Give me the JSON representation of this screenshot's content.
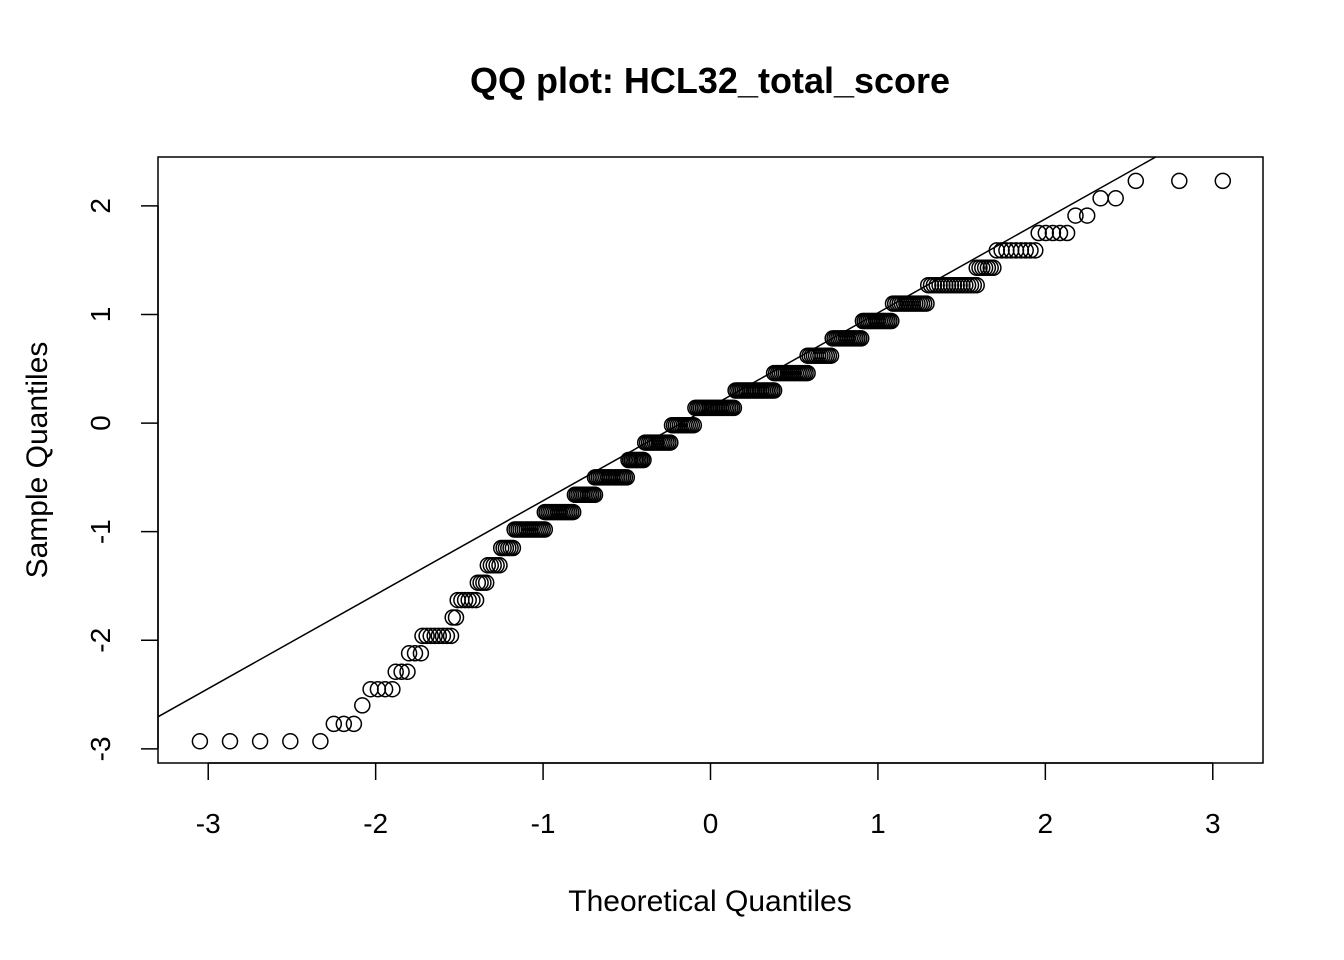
{
  "chart_data": {
    "type": "scatter",
    "title": "QQ plot: HCL32_total_score",
    "xlabel": "Theoretical Quantiles",
    "ylabel": "Sample Quantiles",
    "xlim": [
      -3.3,
      3.3
    ],
    "ylim": [
      -3.13,
      2.45
    ],
    "x_ticks": [
      -3,
      -2,
      -1,
      0,
      1,
      2,
      3
    ],
    "y_ticks": [
      -3,
      -2,
      -1,
      0,
      1,
      2
    ],
    "grid": false,
    "marker": "open-circle",
    "reference_line": {
      "intercept": 0.15,
      "slope": 0.865
    },
    "groups": [
      {
        "y": -2.93,
        "x_min": -3.05,
        "x_max": -2.33,
        "n": 5
      },
      {
        "y": -2.77,
        "x_min": -2.25,
        "x_max": -2.13,
        "n": 3
      },
      {
        "y": -2.6,
        "x_min": -2.08,
        "x_max": -2.08,
        "n": 1
      },
      {
        "y": -2.45,
        "x_min": -2.03,
        "x_max": -1.9,
        "n": 4
      },
      {
        "y": -2.29,
        "x_min": -1.88,
        "x_max": -1.81,
        "n": 3
      },
      {
        "y": -2.12,
        "x_min": -1.8,
        "x_max": -1.73,
        "n": 3
      },
      {
        "y": -1.96,
        "x_min": -1.72,
        "x_max": -1.55,
        "n": 8
      },
      {
        "y": -1.79,
        "x_min": -1.54,
        "x_max": -1.52,
        "n": 2
      },
      {
        "y": -1.63,
        "x_min": -1.51,
        "x_max": -1.4,
        "n": 6
      },
      {
        "y": -1.47,
        "x_min": -1.39,
        "x_max": -1.34,
        "n": 4
      },
      {
        "y": -1.31,
        "x_min": -1.33,
        "x_max": -1.26,
        "n": 5
      },
      {
        "y": -1.15,
        "x_min": -1.25,
        "x_max": -1.18,
        "n": 6
      },
      {
        "y": -0.98,
        "x_min": -1.17,
        "x_max": -0.99,
        "n": 16
      },
      {
        "y": -0.82,
        "x_min": -0.99,
        "x_max": -0.82,
        "n": 16
      },
      {
        "y": -0.66,
        "x_min": -0.81,
        "x_max": -0.69,
        "n": 12
      },
      {
        "y": -0.5,
        "x_min": -0.69,
        "x_max": -0.5,
        "n": 18
      },
      {
        "y": -0.34,
        "x_min": -0.49,
        "x_max": -0.4,
        "n": 10
      },
      {
        "y": -0.18,
        "x_min": -0.39,
        "x_max": -0.24,
        "n": 14
      },
      {
        "y": -0.02,
        "x_min": -0.23,
        "x_max": -0.1,
        "n": 12
      },
      {
        "y": 0.14,
        "x_min": -0.09,
        "x_max": 0.14,
        "n": 22
      },
      {
        "y": 0.3,
        "x_min": 0.15,
        "x_max": 0.38,
        "n": 22
      },
      {
        "y": 0.46,
        "x_min": 0.38,
        "x_max": 0.58,
        "n": 18
      },
      {
        "y": 0.62,
        "x_min": 0.58,
        "x_max": 0.72,
        "n": 12
      },
      {
        "y": 0.78,
        "x_min": 0.73,
        "x_max": 0.9,
        "n": 16
      },
      {
        "y": 0.94,
        "x_min": 0.91,
        "x_max": 1.08,
        "n": 16
      },
      {
        "y": 1.1,
        "x_min": 1.09,
        "x_max": 1.29,
        "n": 16
      },
      {
        "y": 1.27,
        "x_min": 1.3,
        "x_max": 1.59,
        "n": 18
      },
      {
        "y": 1.43,
        "x_min": 1.59,
        "x_max": 1.69,
        "n": 7
      },
      {
        "y": 1.59,
        "x_min": 1.71,
        "x_max": 1.94,
        "n": 9
      },
      {
        "y": 1.75,
        "x_min": 1.96,
        "x_max": 2.13,
        "n": 5
      },
      {
        "y": 1.91,
        "x_min": 2.18,
        "x_max": 2.25,
        "n": 2
      },
      {
        "y": 2.07,
        "x_min": 2.33,
        "x_max": 2.42,
        "n": 2
      },
      {
        "y": 2.23,
        "x_min": 2.54,
        "x_max": 3.06,
        "n": 3
      }
    ]
  }
}
